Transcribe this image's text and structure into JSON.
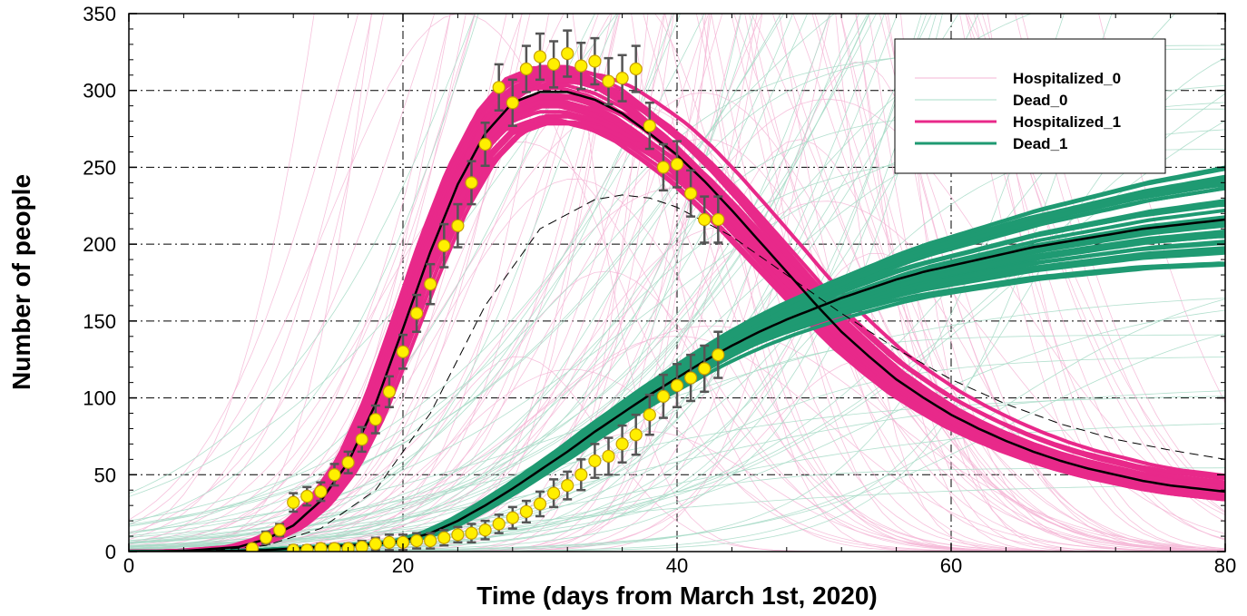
{
  "chart_data": {
    "type": "line",
    "title": "",
    "xlabel": "Time (days from March 1st, 2020)",
    "ylabel": "Number of people",
    "xlim": [
      0,
      80
    ],
    "ylim": [
      0,
      350
    ],
    "xticks": [
      0,
      20,
      40,
      60,
      80
    ],
    "xtick_labels": [
      "0",
      "20",
      "40",
      "60",
      "80"
    ],
    "yticks": [
      0,
      50,
      100,
      150,
      200,
      250,
      300,
      350
    ],
    "ytick_labels": [
      "0",
      "50",
      "100",
      "150",
      "200",
      "250",
      "300",
      "350"
    ],
    "grid": true,
    "legend_position": "top-right",
    "legend": [
      {
        "label": "Hospitalized_0",
        "color": "#f4b6d6",
        "style": "thin"
      },
      {
        "label": "Dead_0",
        "color": "#a8dcc8",
        "style": "thin"
      },
      {
        "label": "Hospitalized_1",
        "color": "#e8298a",
        "style": "thick"
      },
      {
        "label": "Dead_1",
        "color": "#1f9a72",
        "style": "thick"
      }
    ],
    "colors": {
      "hospitalized_prior": "#f4b6d6",
      "dead_prior": "#a8dcc8",
      "hospitalized_post": "#e8298a",
      "dead_post": "#1f9a72",
      "observations_fill": "#ffef00",
      "observations_edge": "#c8a000",
      "errorbar": "#555555"
    },
    "series": [
      {
        "x": [
          0,
          4,
          8,
          10,
          12,
          14,
          16,
          18,
          20,
          22,
          24,
          26,
          28,
          30,
          32,
          34,
          36,
          38,
          40,
          42,
          44,
          46,
          48,
          50,
          52,
          54,
          56,
          58,
          60,
          62,
          64,
          66,
          68,
          70,
          72,
          74,
          76,
          78,
          80
        ],
        "values": [
          0,
          0.4,
          3,
          8,
          17,
          33,
          58,
          96,
          145,
          195,
          239,
          272,
          292,
          299,
          299,
          294,
          285,
          272,
          258,
          241,
          222,
          202,
          182,
          162,
          143,
          127,
          112,
          100,
          89,
          80,
          72,
          65,
          59,
          54,
          50,
          46,
          43,
          41,
          39
        ],
        "role": "hospitalized posterior mean"
      },
      {
        "x": [
          0,
          4,
          8,
          10,
          12,
          14,
          16,
          18,
          20,
          22,
          24,
          26,
          28,
          30,
          32,
          34,
          36,
          38,
          40,
          42,
          44,
          46,
          48,
          50,
          52,
          54,
          56,
          58,
          60,
          62,
          64,
          66,
          68,
          70,
          72,
          74,
          76,
          78,
          80
        ],
        "values": [
          0,
          0,
          0.5,
          1,
          2,
          3,
          4,
          5,
          7,
          12,
          20,
          30,
          41,
          53,
          65,
          78,
          90,
          102,
          113,
          124,
          134,
          143,
          151,
          158,
          165,
          171,
          177,
          182,
          186,
          190,
          194,
          198,
          201,
          204,
          207,
          210,
          212,
          214,
          216
        ],
        "role": "dead posterior mean"
      },
      {
        "x": [
          0,
          6,
          10,
          14,
          18,
          22,
          26,
          30,
          34,
          36,
          38,
          40,
          44,
          48,
          52,
          56,
          60,
          64,
          68,
          72,
          76,
          80
        ],
        "values": [
          0,
          0.5,
          4,
          15,
          40,
          90,
          160,
          210,
          229,
          232,
          230,
          224,
          205,
          180,
          155,
          132,
          112,
          96,
          83,
          73,
          66,
          60
        ],
        "role": "hospitalized prior mean"
      }
    ],
    "observations": {
      "hospitalized": {
        "x": [
          9,
          10,
          11,
          12,
          13,
          14,
          15,
          16,
          17,
          18,
          19,
          20,
          21,
          22,
          23,
          24,
          25,
          26,
          27,
          28,
          29,
          30,
          31,
          32,
          33,
          34,
          35,
          36,
          37,
          38,
          39,
          40,
          41,
          42,
          43
        ],
        "values": [
          2,
          9,
          14,
          32,
          36,
          39,
          50,
          58,
          73,
          86,
          104,
          130,
          155,
          174,
          199,
          212,
          240,
          265,
          302,
          292,
          314,
          322,
          317,
          324,
          316,
          319,
          306,
          308,
          314,
          277,
          250,
          252,
          233,
          216,
          216
        ],
        "errors": [
          3,
          4,
          4,
          6,
          6,
          6,
          7,
          7,
          8,
          9,
          10,
          11,
          12,
          13,
          14,
          14,
          14,
          14,
          15,
          15,
          15,
          15,
          15,
          15,
          15,
          15,
          15,
          15,
          15,
          15,
          15,
          15,
          15,
          15,
          15
        ]
      },
      "dead": {
        "x": [
          12,
          13,
          14,
          15,
          16,
          17,
          18,
          19,
          20,
          21,
          22,
          23,
          24,
          25,
          26,
          27,
          28,
          29,
          30,
          31,
          32,
          33,
          34,
          35,
          36,
          37,
          38,
          39,
          40,
          41,
          42,
          43
        ],
        "values": [
          1,
          1,
          2,
          2,
          2,
          3,
          5,
          6,
          6,
          7,
          7,
          9,
          11,
          12,
          14,
          18,
          22,
          26,
          31,
          38,
          43,
          50,
          59,
          62,
          70,
          76,
          89,
          101,
          108,
          113,
          119,
          128
        ],
        "errors": [
          3,
          3,
          3,
          3,
          3,
          4,
          4,
          5,
          5,
          5,
          5,
          5,
          5,
          6,
          6,
          6,
          7,
          7,
          8,
          9,
          9,
          10,
          11,
          12,
          12,
          13,
          13,
          14,
          14,
          15,
          15,
          15
        ]
      }
    }
  }
}
